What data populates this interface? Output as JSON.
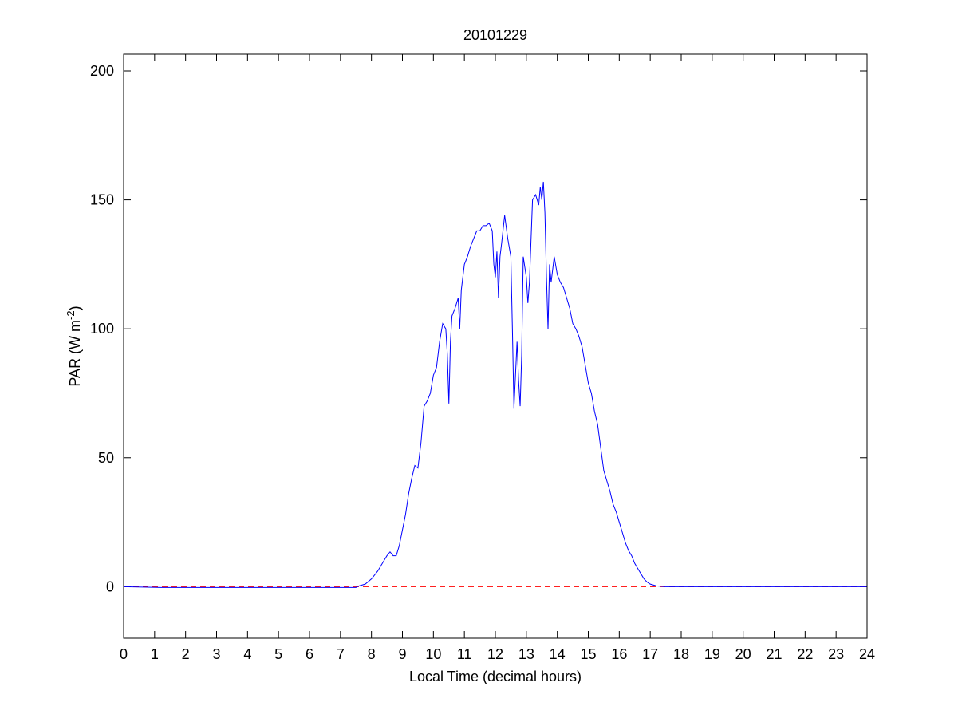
{
  "chart_data": {
    "type": "line",
    "title": "20101229",
    "xlabel": "Local Time (decimal hours)",
    "ylabel": {
      "text": "PAR (W m",
      "sup": "-2",
      "end": ")"
    },
    "x": [
      0,
      1.2,
      7.5,
      7.6,
      7.8,
      8.0,
      8.2,
      8.4,
      8.5,
      8.6,
      8.7,
      8.8,
      8.9,
      9.0,
      9.1,
      9.2,
      9.3,
      9.4,
      9.5,
      9.6,
      9.7,
      9.8,
      9.9,
      10.0,
      10.1,
      10.2,
      10.3,
      10.4,
      10.45,
      10.5,
      10.55,
      10.6,
      10.7,
      10.8,
      10.85,
      10.9,
      11.0,
      11.1,
      11.2,
      11.3,
      11.4,
      11.5,
      11.6,
      11.7,
      11.8,
      11.9,
      11.95,
      12.0,
      12.05,
      12.1,
      12.15,
      12.2,
      12.3,
      12.4,
      12.5,
      12.55,
      12.6,
      12.7,
      12.75,
      12.8,
      12.85,
      12.9,
      13.0,
      13.05,
      13.1,
      13.2,
      13.3,
      13.4,
      13.45,
      13.5,
      13.55,
      13.6,
      13.65,
      13.7,
      13.75,
      13.8,
      13.9,
      14.0,
      14.1,
      14.2,
      14.3,
      14.4,
      14.5,
      14.6,
      14.7,
      14.8,
      14.9,
      15.0,
      15.1,
      15.2,
      15.3,
      15.4,
      15.5,
      15.6,
      15.7,
      15.8,
      15.9,
      16.0,
      16.1,
      16.2,
      16.3,
      16.4,
      16.5,
      16.6,
      16.7,
      16.8,
      16.9,
      17.0,
      17.2,
      17.5,
      24
    ],
    "series": [
      {
        "name": "PAR",
        "color": "#0000ff",
        "values": [
          0,
          -0.3,
          -0.3,
          0.3,
          1,
          3,
          6,
          10,
          12,
          13.5,
          12,
          12,
          16,
          22,
          28,
          36,
          42,
          47,
          46,
          56,
          70,
          72,
          75,
          82,
          85,
          95,
          102,
          100,
          90,
          71,
          95,
          105,
          108,
          112,
          100,
          115,
          125,
          128,
          132,
          135,
          138,
          138,
          140,
          140,
          141,
          138,
          125,
          120,
          130,
          112,
          128,
          133,
          144,
          135,
          128,
          100,
          69,
          95,
          80,
          70,
          90,
          128,
          120,
          110,
          118,
          150,
          152,
          148,
          155,
          150,
          157,
          145,
          120,
          100,
          125,
          118,
          128,
          121,
          118,
          116,
          112,
          108,
          102,
          100,
          97,
          93,
          86,
          79,
          75,
          68,
          63,
          54,
          45,
          41,
          37,
          32,
          29,
          25,
          21,
          17,
          14,
          12,
          9,
          7,
          5,
          3,
          1.8,
          1,
          0.3,
          0,
          0
        ]
      }
    ],
    "reference_line": {
      "value": 0,
      "color": "#ff0000",
      "dashed": true
    },
    "xlim": [
      0,
      24
    ],
    "ylim": [
      -20,
      206.5
    ],
    "xticks": [
      0,
      1,
      2,
      3,
      4,
      5,
      6,
      7,
      8,
      9,
      10,
      11,
      12,
      13,
      14,
      15,
      16,
      17,
      18,
      19,
      20,
      21,
      22,
      23,
      24
    ],
    "yticks": [
      0,
      50,
      100,
      150,
      200
    ],
    "grid": false
  }
}
